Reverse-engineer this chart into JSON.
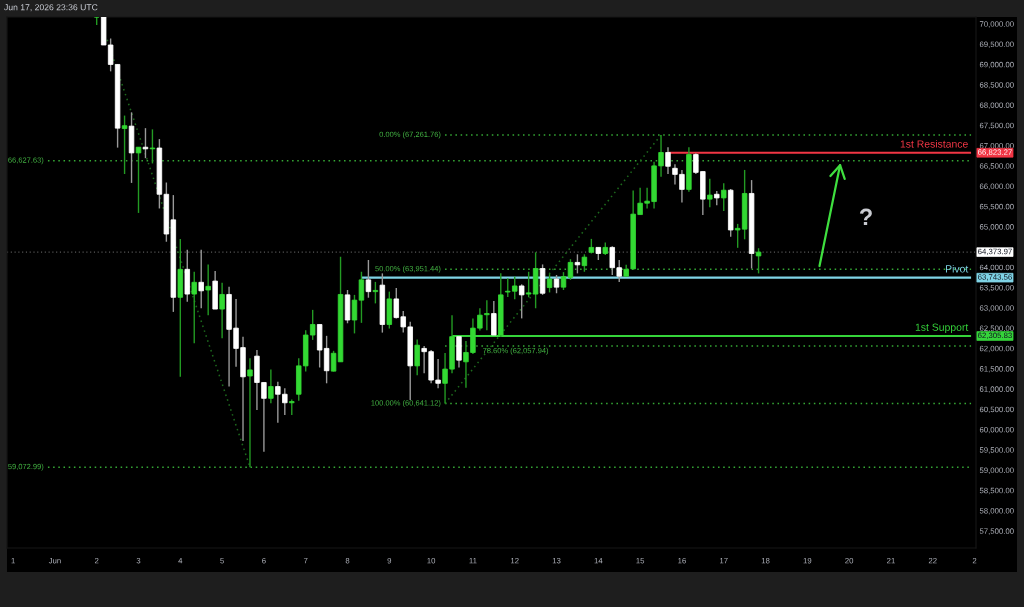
{
  "chart_data": {
    "type": "candlestick",
    "x": [
      "2026-06-02T00:00",
      "2026-06-02T04:00",
      "2026-06-02T08:00",
      "2026-06-02T12:00",
      "2026-06-02T16:00",
      "2026-06-02T20:00",
      "2026-06-03T00:00",
      "2026-06-03T04:00",
      "2026-06-03T08:00",
      "2026-06-03T12:00",
      "2026-06-03T16:00",
      "2026-06-03T20:00",
      "2026-06-04T00:00",
      "2026-06-04T04:00",
      "2026-06-04T08:00",
      "2026-06-04T12:00",
      "2026-06-04T16:00",
      "2026-06-04T20:00",
      "2026-06-05T00:00",
      "2026-06-05T04:00",
      "2026-06-05T08:00",
      "2026-06-05T12:00",
      "2026-06-05T16:00",
      "2026-06-05T20:00",
      "2026-06-06T00:00",
      "2026-06-06T04:00",
      "2026-06-06T08:00",
      "2026-06-06T12:00",
      "2026-06-06T16:00",
      "2026-06-06T20:00",
      "2026-06-07T00:00",
      "2026-06-07T04:00",
      "2026-06-07T08:00",
      "2026-06-07T12:00",
      "2026-06-07T16:00",
      "2026-06-07T20:00",
      "2026-06-08T00:00",
      "2026-06-08T04:00",
      "2026-06-08T08:00",
      "2026-06-08T12:00",
      "2026-06-08T16:00",
      "2026-06-08T20:00",
      "2026-06-09T00:00",
      "2026-06-09T04:00",
      "2026-06-09T08:00",
      "2026-06-09T12:00",
      "2026-06-09T16:00",
      "2026-06-09T20:00",
      "2026-06-10T00:00",
      "2026-06-10T04:00",
      "2026-06-10T08:00",
      "2026-06-10T12:00",
      "2026-06-10T16:00",
      "2026-06-10T20:00",
      "2026-06-11T00:00",
      "2026-06-11T04:00",
      "2026-06-11T08:00",
      "2026-06-11T12:00",
      "2026-06-11T16:00",
      "2026-06-11T20:00",
      "2026-06-12T00:00",
      "2026-06-12T04:00",
      "2026-06-12T08:00",
      "2026-06-12T12:00",
      "2026-06-12T16:00",
      "2026-06-12T20:00",
      "2026-06-13T00:00",
      "2026-06-13T04:00",
      "2026-06-13T08:00",
      "2026-06-13T12:00",
      "2026-06-13T16:00",
      "2026-06-13T20:00",
      "2026-06-14T00:00",
      "2026-06-14T04:00",
      "2026-06-14T08:00",
      "2026-06-14T12:00",
      "2026-06-14T16:00",
      "2026-06-14T20:00",
      "2026-06-15T00:00",
      "2026-06-15T04:00",
      "2026-06-15T08:00",
      "2026-06-15T12:00",
      "2026-06-15T16:00",
      "2026-06-15T20:00",
      "2026-06-16T00:00",
      "2026-06-16T04:00",
      "2026-06-16T08:00",
      "2026-06-16T12:00",
      "2026-06-16T16:00",
      "2026-06-16T20:00",
      "2026-06-17T00:00",
      "2026-06-17T04:00",
      "2026-06-17T08:00",
      "2026-06-17T12:00",
      "2026-06-17T16:00",
      "2026-06-17T20:00"
    ],
    "ohlc": [
      [
        70170,
        70170,
        69970,
        70170
      ],
      [
        70170,
        70170,
        69480,
        69480
      ],
      [
        69480,
        69640,
        68830,
        69000
      ],
      [
        69000,
        69010,
        66950,
        67430
      ],
      [
        67420,
        67740,
        66300,
        67490
      ],
      [
        67480,
        67820,
        66080,
        66820
      ],
      [
        66820,
        66960,
        65340,
        66960
      ],
      [
        66960,
        67430,
        66690,
        66920
      ],
      [
        66920,
        67400,
        66560,
        66940
      ],
      [
        66940,
        67160,
        65450,
        65800
      ],
      [
        65800,
        66090,
        64630,
        64820
      ],
      [
        65170,
        65780,
        62900,
        63260
      ],
      [
        63260,
        64700,
        61300,
        63950
      ],
      [
        63950,
        64430,
        63150,
        63340
      ],
      [
        63340,
        63890,
        62130,
        63630
      ],
      [
        63630,
        64430,
        62990,
        63420
      ],
      [
        63440,
        64070,
        62820,
        63530
      ],
      [
        63660,
        63910,
        62970,
        62970
      ],
      [
        62970,
        63620,
        62250,
        63330
      ],
      [
        63330,
        63520,
        61060,
        62470
      ],
      [
        62500,
        63220,
        61550,
        62000
      ],
      [
        62020,
        62290,
        59720,
        61300
      ],
      [
        61320,
        61760,
        59072.99,
        61470
      ],
      [
        61810,
        61960,
        60480,
        61160
      ],
      [
        61160,
        61160,
        59450,
        60770
      ],
      [
        60770,
        61480,
        60650,
        61060
      ],
      [
        61060,
        61180,
        60170,
        60870
      ],
      [
        60870,
        61020,
        60360,
        60660
      ],
      [
        60660,
        60740,
        60360,
        60690
      ],
      [
        60870,
        61760,
        60710,
        61570
      ],
      [
        61570,
        62450,
        61430,
        62330
      ],
      [
        62330,
        62950,
        62210,
        62590
      ],
      [
        62590,
        62590,
        61530,
        61960
      ],
      [
        62000,
        62310,
        61140,
        61450
      ],
      [
        61440,
        61940,
        61430,
        61880
      ],
      [
        61670,
        64260,
        61670,
        63330
      ],
      [
        63320,
        63440,
        62620,
        62700
      ],
      [
        62700,
        63320,
        62370,
        63190
      ],
      [
        63190,
        63890,
        62630,
        63690
      ],
      [
        63690,
        64180,
        63250,
        63400
      ],
      [
        63400,
        63640,
        63110,
        63430
      ],
      [
        63560,
        63850,
        62390,
        62590
      ],
      [
        62590,
        63400,
        62490,
        63220
      ],
      [
        63220,
        63490,
        62740,
        62760
      ],
      [
        62780,
        62920,
        62390,
        62530
      ],
      [
        62530,
        62660,
        60730,
        61570
      ],
      [
        61570,
        62220,
        61340,
        62080
      ],
      [
        62000,
        62060,
        61390,
        61920
      ],
      [
        61920,
        61960,
        61140,
        61220
      ],
      [
        61220,
        61740,
        61020,
        61140
      ],
      [
        61140,
        61890,
        60641.12,
        61490
      ],
      [
        61490,
        62820,
        61390,
        62290
      ],
      [
        62290,
        62290,
        61530,
        61710
      ],
      [
        61670,
        62180,
        61030,
        61900
      ],
      [
        61900,
        62740,
        61860,
        62500
      ],
      [
        62500,
        62990,
        62440,
        62820
      ],
      [
        62830,
        63190,
        62450,
        62860
      ],
      [
        62860,
        63170,
        62330,
        62330
      ],
      [
        62330,
        63850,
        62290,
        63320
      ],
      [
        63390,
        63730,
        63270,
        63410
      ],
      [
        63410,
        63770,
        63210,
        63540
      ],
      [
        63540,
        63580,
        62740,
        63320
      ],
      [
        63340,
        63890,
        63260,
        63370
      ],
      [
        63340,
        64370,
        62990,
        63970
      ],
      [
        63970,
        64070,
        63320,
        63360
      ],
      [
        63500,
        63830,
        63380,
        63710
      ],
      [
        63710,
        63810,
        63360,
        63510
      ],
      [
        63510,
        63880,
        63440,
        63770
      ],
      [
        63750,
        64200,
        63690,
        64120
      ],
      [
        64120,
        64320,
        63850,
        64060
      ],
      [
        64040,
        64320,
        63890,
        64250
      ],
      [
        64370,
        64700,
        64340,
        64490
      ],
      [
        64490,
        64490,
        64180,
        64340
      ],
      [
        64340,
        64610,
        64300,
        64490
      ],
      [
        64490,
        64520,
        63810,
        63990
      ],
      [
        63990,
        64180,
        63640,
        63780
      ],
      [
        63780,
        64060,
        63780,
        63950
      ],
      [
        63960,
        65890,
        63960,
        65310
      ],
      [
        65300,
        65960,
        65300,
        65580
      ],
      [
        65580,
        65960,
        65450,
        65630
      ],
      [
        65620,
        66600,
        65450,
        66500
      ],
      [
        66500,
        67261.76,
        66230,
        66830
      ],
      [
        66830,
        66960,
        66300,
        66490
      ],
      [
        66440,
        66540,
        66040,
        66290
      ],
      [
        66290,
        66400,
        65600,
        65920
      ],
      [
        65920,
        66960,
        65860,
        66780
      ],
      [
        66780,
        66810,
        66300,
        66340
      ],
      [
        66360,
        66360,
        65290,
        65680
      ],
      [
        65680,
        66180,
        65480,
        65780
      ],
      [
        65800,
        65880,
        65530,
        65710
      ],
      [
        65710,
        66070,
        65390,
        65900
      ],
      [
        65900,
        65930,
        64750,
        64920
      ],
      [
        64920,
        65070,
        64480,
        64960
      ],
      [
        64940,
        66400,
        64690,
        65820
      ],
      [
        65820,
        66150,
        63970,
        64340
      ],
      [
        64280,
        64470,
        63850,
        64373.97
      ]
    ],
    "series": [
      {
        "type": "line",
        "x": [
          "2026-05-31T20:00",
          "2026-06-22T22:00"
        ],
        "values": [
          66627.63,
          66627.63
        ],
        "color": "#35a835",
        "line_style": "dotted"
      },
      {
        "type": "line",
        "x": [
          "2026-05-31T20:00",
          "2026-06-22T22:00"
        ],
        "values": [
          59072.99,
          59072.99
        ],
        "color": "#35a835",
        "line_style": "dotted"
      },
      {
        "type": "line",
        "x": [
          "2026-06-02T06:00",
          "2026-06-05T16:00"
        ],
        "values": [
          69610,
          59072.99
        ],
        "color": "#1d6a1d",
        "line_style": "dotted"
      },
      {
        "type": "line",
        "x": [
          "2026-06-10T08:00",
          "2026-06-22T22:00"
        ],
        "values": [
          67261.76,
          67261.76
        ],
        "color": "#35a835",
        "line_style": "dotted"
      },
      {
        "type": "line",
        "x": [
          "2026-06-10T08:00",
          "2026-06-22T22:00"
        ],
        "values": [
          63951.44,
          63951.44
        ],
        "color": "#35a835",
        "line_style": "dotted"
      },
      {
        "type": "line",
        "x": [
          "2026-06-10T08:00",
          "2026-06-22T22:00"
        ],
        "values": [
          62057.94,
          62057.94
        ],
        "color": "#35a835",
        "line_style": "dotted"
      },
      {
        "type": "line",
        "x": [
          "2026-06-10T08:00",
          "2026-06-22T22:00"
        ],
        "values": [
          60641.12,
          60641.12
        ],
        "color": "#35a835",
        "line_style": "dotted"
      },
      {
        "type": "line",
        "x": [
          "2026-06-10T08:00",
          "2026-06-15T12:00"
        ],
        "values": [
          60641.12,
          67261.76
        ],
        "color": "#1d6a1d",
        "line_style": "dotted"
      },
      {
        "type": "line",
        "name": "1st Resistance",
        "x": [
          "2026-06-15T16:00",
          "2026-06-22T22:00"
        ],
        "values": [
          66823.27,
          66823.27
        ],
        "color": "#f23645",
        "line_style": "solid",
        "value_labels": [
          null,
          "66,823.27"
        ]
      },
      {
        "type": "line",
        "name": "Pivot",
        "x": [
          "2026-06-08T08:00",
          "2026-06-22T22:00"
        ],
        "values": [
          63743.56,
          63743.56
        ],
        "color": "#7fd4e6",
        "line_style": "solid",
        "value_labels": [
          null,
          "63,743.56"
        ]
      },
      {
        "type": "line",
        "name": "1st Support",
        "x": [
          "2026-06-10T12:00",
          "2026-06-22T22:00"
        ],
        "values": [
          62305.83,
          62305.83
        ],
        "color": "#35d43a",
        "line_style": "solid",
        "value_labels": [
          null,
          "62,305.83"
        ]
      }
    ],
    "ref_lines": [
      {
        "axis": "y",
        "value": 64373.97,
        "label": "64,373.97",
        "color": "#5a5a5a",
        "line_style": "dotted"
      }
    ],
    "annotations": [
      "Jun 17, 2026 23:36 UTC",
      "?",
      {
        "text": "66,627.63)",
        "x": "2026-05-31T20:00",
        "y": 66627.63
      },
      {
        "text": "59,072.99)",
        "x": "2026-05-31T20:00",
        "y": 59072.99
      },
      {
        "text": "0.00% (67,261.76)",
        "x": "2026-06-10T08:00",
        "y": 67261.76
      },
      {
        "text": "50.00% (63,951.44)",
        "x": "2026-06-10T08:00",
        "y": 63951.44
      },
      {
        "text": "78.60% (62,057.94)",
        "x": "2026-06-11T04:00",
        "y": 62057.94
      },
      {
        "text": "100.00% (60,641.12)",
        "x": "2026-06-10T08:00",
        "y": 60641.12
      }
    ],
    "xlim": [
      "2026-05-30T20:30",
      "2026-06-23T00:50"
    ],
    "xticks": [
      {
        "value": "2026-05-31",
        "label": "1"
      },
      {
        "value": "2026-06-01",
        "label": "Jun"
      },
      {
        "value": "2026-06-02",
        "label": "2"
      },
      {
        "value": "2026-06-03",
        "label": "3"
      },
      {
        "value": "2026-06-04",
        "label": "4"
      },
      {
        "value": "2026-06-05",
        "label": "5"
      },
      {
        "value": "2026-06-06",
        "label": "6"
      },
      {
        "value": "2026-06-07",
        "label": "7"
      },
      {
        "value": "2026-06-08",
        "label": "8"
      },
      {
        "value": "2026-06-09",
        "label": "9"
      },
      {
        "value": "2026-06-10",
        "label": "10"
      },
      {
        "value": "2026-06-11",
        "label": "11"
      },
      {
        "value": "2026-06-12",
        "label": "12"
      },
      {
        "value": "2026-06-13",
        "label": "13"
      },
      {
        "value": "2026-06-14",
        "label": "14"
      },
      {
        "value": "2026-06-15",
        "label": "15"
      },
      {
        "value": "2026-06-16",
        "label": "16"
      },
      {
        "value": "2026-06-17",
        "label": "17"
      },
      {
        "value": "2026-06-18",
        "label": "18"
      },
      {
        "value": "2026-06-19",
        "label": "19"
      },
      {
        "value": "2026-06-20",
        "label": "20"
      },
      {
        "value": "2026-06-21",
        "label": "21"
      },
      {
        "value": "2026-06-22",
        "label": "22"
      },
      {
        "value": "2026-06-23",
        "label": "2"
      }
    ],
    "ylim": [
      57080,
      70170
    ],
    "yticks": [
      {
        "value": 57500,
        "label": "57,500.00"
      },
      {
        "value": 58000,
        "label": "58,000.00"
      },
      {
        "value": 58500,
        "label": "58,500.00"
      },
      {
        "value": 59000,
        "label": "59,000.00"
      },
      {
        "value": 59500,
        "label": "59,500.00"
      },
      {
        "value": 60000,
        "label": "60,000.00"
      },
      {
        "value": 60500,
        "label": "60,500.00"
      },
      {
        "value": 61000,
        "label": "61,000.00"
      },
      {
        "value": 61500,
        "label": "61,500.00"
      },
      {
        "value": 62000,
        "label": "62,000.00"
      },
      {
        "value": 62500,
        "label": "62,500.00"
      },
      {
        "value": 63000,
        "label": "63,000.00"
      },
      {
        "value": 63500,
        "label": "63,500.00"
      },
      {
        "value": 64000,
        "label": "64,000.00"
      },
      {
        "value": 65000,
        "label": "65,000.00"
      },
      {
        "value": 65500,
        "label": "65,500.00"
      },
      {
        "value": 66000,
        "label": "66,000.00"
      },
      {
        "value": 66500,
        "label": "66,500.00"
      },
      {
        "value": 67000,
        "label": "67,000.00"
      },
      {
        "value": 67500,
        "label": "67,500.00"
      },
      {
        "value": 68000,
        "label": "68,000.00"
      },
      {
        "value": 68500,
        "label": "68,500.00"
      },
      {
        "value": 69000,
        "label": "69,000.00"
      },
      {
        "value": 69500,
        "label": "69,500.00"
      },
      {
        "value": 70000,
        "label": "70,000.00"
      }
    ]
  }
}
